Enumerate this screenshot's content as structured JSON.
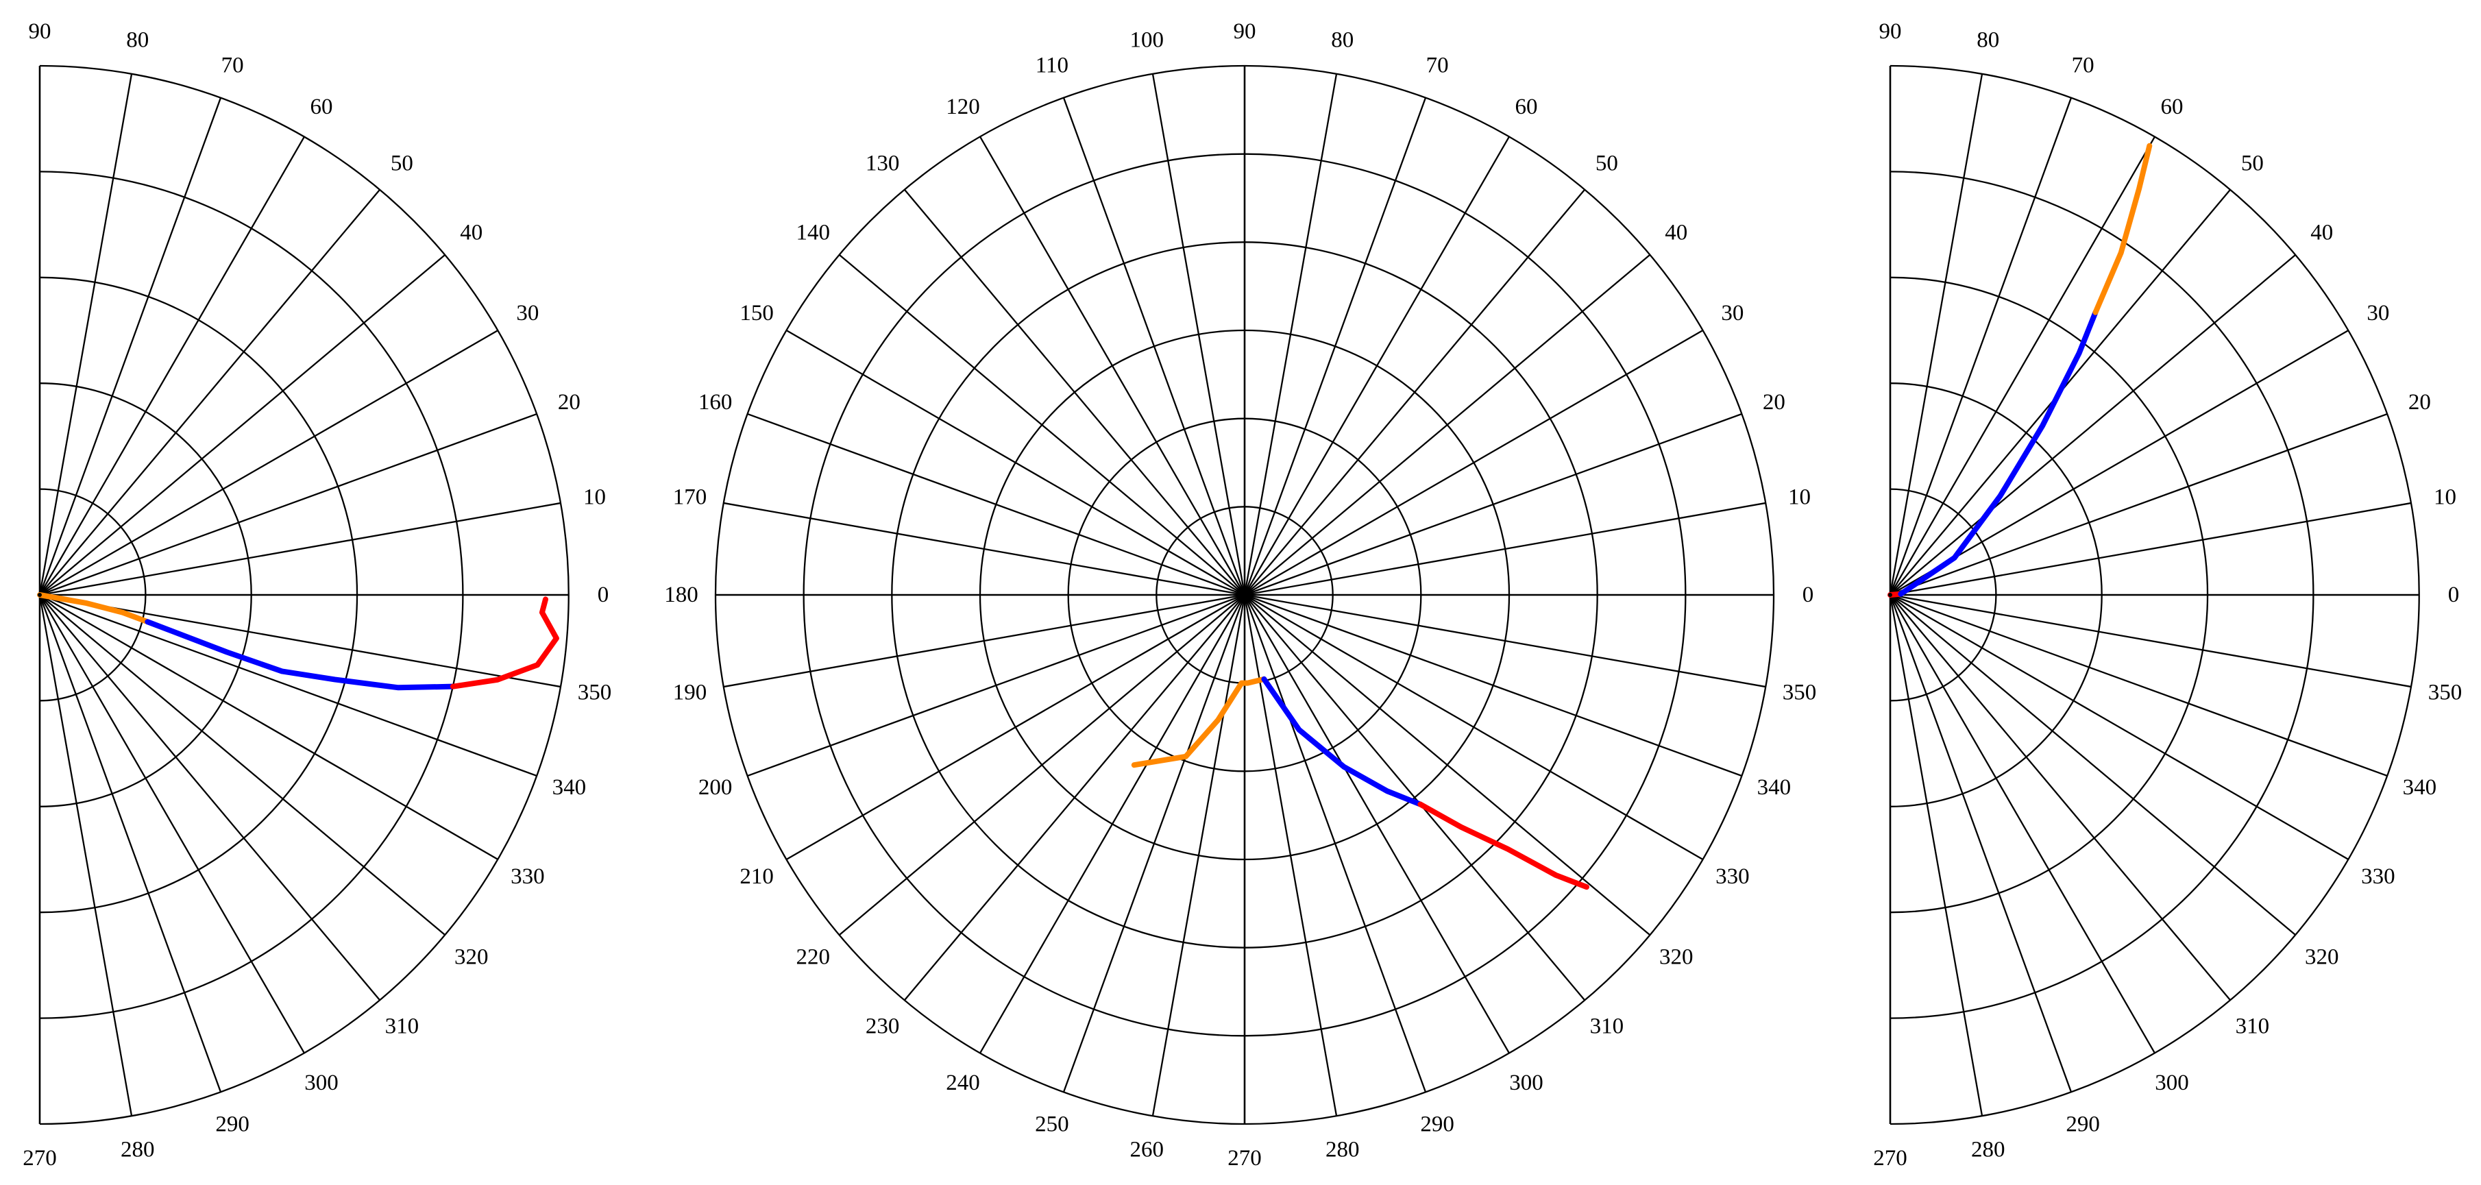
{
  "chart_data": [
    {
      "type": "line",
      "polar": true,
      "angle_unit": "degrees",
      "angle_range": [
        270,
        90
      ],
      "rmax": 5,
      "rings": 5,
      "spokes_step": 10,
      "angle_ticks": [
        "270",
        "280",
        "290",
        "300",
        "310",
        "320",
        "330",
        "340",
        "350",
        "0",
        "10",
        "20",
        "30",
        "40",
        "50",
        "60",
        "70",
        "80",
        "90"
      ],
      "series": [
        {
          "color": "#ff8800",
          "points": [
            [
              0,
              0
            ],
            [
              -10,
              0.45
            ],
            [
              -12,
              0.8
            ],
            [
              -14,
              1.05
            ]
          ]
        },
        {
          "color": "#0000ff",
          "points": [
            [
              -14,
              1.05
            ],
            [
              -17,
              1.85
            ],
            [
              -17.5,
              2.4
            ],
            [
              -16,
              2.9
            ],
            [
              -14.5,
              3.5
            ],
            [
              -12.5,
              4.0
            ]
          ]
        },
        {
          "color": "#ff0000",
          "points": [
            [
              -12.5,
              4.0
            ],
            [
              -10.5,
              4.4
            ],
            [
              -8,
              4.75
            ],
            [
              -4.8,
              4.9
            ],
            [
              -2,
              4.75
            ],
            [
              -0.5,
              4.78
            ]
          ]
        }
      ]
    },
    {
      "type": "line",
      "polar": true,
      "angle_unit": "degrees",
      "angle_range": [
        0,
        360
      ],
      "rmax": 6,
      "rings": 6,
      "spokes_step": 10,
      "angle_ticks": [
        "0",
        "10",
        "20",
        "30",
        "40",
        "50",
        "60",
        "70",
        "80",
        "90",
        "100",
        "110",
        "120",
        "130",
        "140",
        "150",
        "160",
        "170",
        "180",
        "190",
        "200",
        "210",
        "220",
        "230",
        "240",
        "250",
        "260",
        "270",
        "280",
        "290",
        "300",
        "310",
        "320",
        "330",
        "340",
        "350"
      ],
      "series": [
        {
          "color": "#ff8800",
          "points": [
            [
              237,
              2.3
            ],
            [
              250,
              1.95
            ],
            [
              258,
              1.45
            ],
            [
              268,
              1.0
            ],
            [
              272,
              1.0
            ],
            [
              283,
              0.98
            ]
          ]
        },
        {
          "color": "#0000ff",
          "points": [
            [
              283,
              0.98
            ],
            [
              292,
              1.65
            ],
            [
              300,
              2.25
            ],
            [
              306,
              2.75
            ],
            [
              310,
              3.1
            ]
          ]
        },
        {
          "color": "#ff0000",
          "points": [
            [
              310,
              3.1
            ],
            [
              313,
              3.6
            ],
            [
              316,
              4.15
            ],
            [
              318,
              4.75
            ],
            [
              319.5,
              5.1
            ]
          ]
        }
      ]
    },
    {
      "type": "line",
      "polar": true,
      "angle_unit": "degrees",
      "angle_range": [
        270,
        90
      ],
      "rmax": 5,
      "rings": 5,
      "spokes_step": 10,
      "angle_ticks": [
        "270",
        "280",
        "290",
        "300",
        "310",
        "320",
        "330",
        "340",
        "350",
        "0",
        "10",
        "20",
        "30",
        "40",
        "50",
        "60",
        "70",
        "80",
        "90"
      ],
      "series": [
        {
          "color": "#ff0000",
          "points": [
            [
              0,
              0
            ],
            [
              5,
              0.1
            ]
          ]
        },
        {
          "color": "#0000ff",
          "points": [
            [
              5,
              0.1
            ],
            [
              30,
              0.7
            ],
            [
              42,
              1.4
            ],
            [
              48,
              2.15
            ],
            [
              52,
              2.9
            ],
            [
              54,
              3.3
            ]
          ]
        },
        {
          "color": "#ff8800",
          "points": [
            [
              54,
              3.3
            ],
            [
              56,
              3.9
            ],
            [
              58.5,
              4.5
            ],
            [
              60,
              4.9
            ]
          ]
        }
      ]
    }
  ]
}
